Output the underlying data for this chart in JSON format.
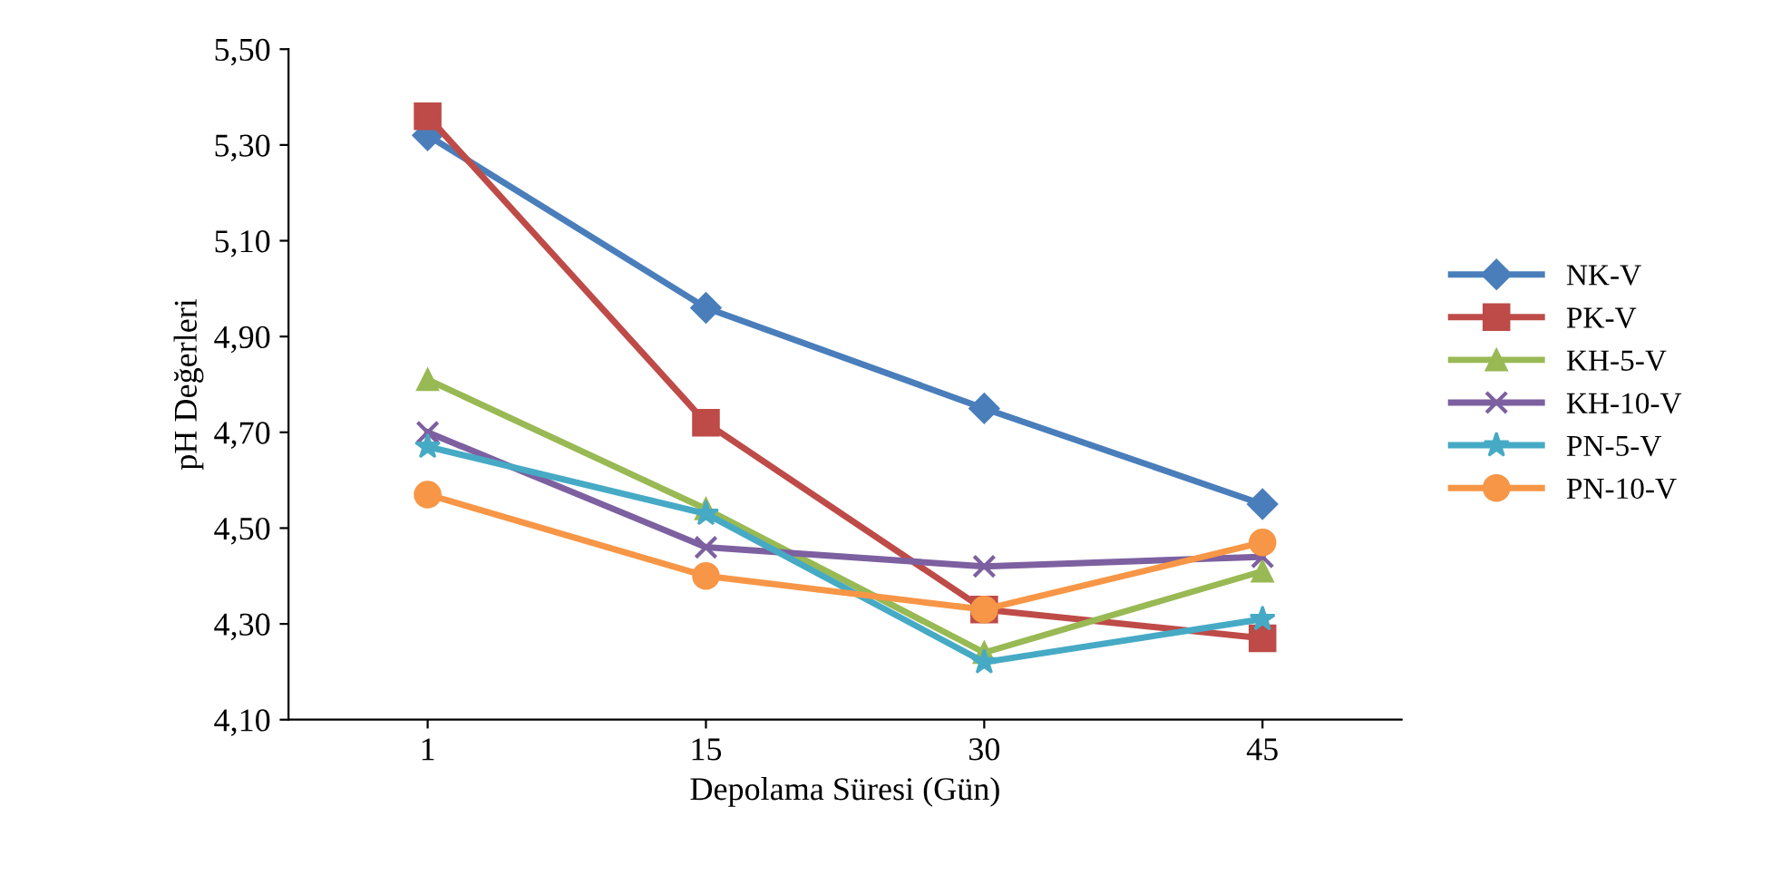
{
  "chart_data": {
    "type": "line",
    "xlabel": "Depolama Süresi (Gün)",
    "ylabel": "pH Değerleri",
    "categories": [
      "1",
      "15",
      "30",
      "45"
    ],
    "ylim": [
      4.1,
      5.5
    ],
    "yticks": [
      {
        "value": 4.1,
        "label": "4,10"
      },
      {
        "value": 4.3,
        "label": "4,30"
      },
      {
        "value": 4.5,
        "label": "4,50"
      },
      {
        "value": 4.7,
        "label": "4,70"
      },
      {
        "value": 4.9,
        "label": "4,90"
      },
      {
        "value": 5.1,
        "label": "5,10"
      },
      {
        "value": 5.3,
        "label": "5,30"
      },
      {
        "value": 5.5,
        "label": "5,50"
      }
    ],
    "grid": false,
    "legend": "right",
    "line_style": "solid",
    "series": [
      {
        "name": "NK-V",
        "color": "#4a7ebb",
        "marker": "diamond",
        "values": [
          5.32,
          4.96,
          4.75,
          4.55
        ]
      },
      {
        "name": "PK-V",
        "color": "#be4b48",
        "marker": "square",
        "values": [
          5.36,
          4.72,
          4.33,
          4.27
        ]
      },
      {
        "name": "KH-5-V",
        "color": "#98b954",
        "marker": "triangle",
        "values": [
          4.81,
          4.54,
          4.24,
          4.41
        ]
      },
      {
        "name": "KH-10-V",
        "color": "#7d60a0",
        "marker": "cross",
        "values": [
          4.7,
          4.46,
          4.42,
          4.44
        ]
      },
      {
        "name": "PN-5-V",
        "color": "#46aac5",
        "marker": "star",
        "values": [
          4.67,
          4.53,
          4.22,
          4.31
        ]
      },
      {
        "name": "PN-10-V",
        "color": "#f79646",
        "marker": "circle",
        "values": [
          4.57,
          4.4,
          4.33,
          4.47
        ]
      }
    ]
  }
}
